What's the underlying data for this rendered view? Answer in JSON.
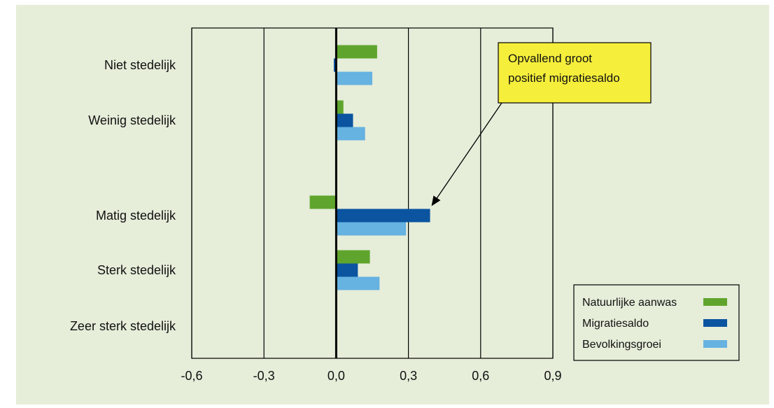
{
  "colors": {
    "background": "#e6edd9",
    "natuurlijke_aanwas": "#5fa52d",
    "migratiesaldo": "#0b54a0",
    "bevolkingsgroei": "#66b2e1",
    "callout_fill": "#f5ee3b",
    "axis": "#000000"
  },
  "chart_data": {
    "type": "bar",
    "orientation": "horizontal",
    "categories": [
      "Niet stedelijk",
      "Weinig stedelijk",
      "Matig stedelijk",
      "Sterk stedelijk",
      "Zeer sterk stedelijk"
    ],
    "series": [
      {
        "name": "Natuurlijke aanwas",
        "values": [
          0.17,
          0.03,
          -0.11,
          0.14,
          null
        ]
      },
      {
        "name": "Migratiesaldo",
        "values": [
          -0.01,
          0.07,
          0.39,
          0.09,
          null
        ]
      },
      {
        "name": "Bevolkingsgroei",
        "values": [
          0.15,
          0.12,
          0.29,
          0.18,
          null
        ]
      }
    ],
    "xlim": [
      -0.6,
      0.9
    ],
    "xticks": [
      "-0,6",
      "-0,3",
      "0,0",
      "0,3",
      "0,6",
      "0,9"
    ],
    "grid": "vertical",
    "legend_position": "bottom-right",
    "annotation": {
      "lines": [
        "Opvallend groot",
        "positief migratiesaldo"
      ],
      "target_category": "Matig stedelijk",
      "target_series": "Migratiesaldo"
    }
  }
}
